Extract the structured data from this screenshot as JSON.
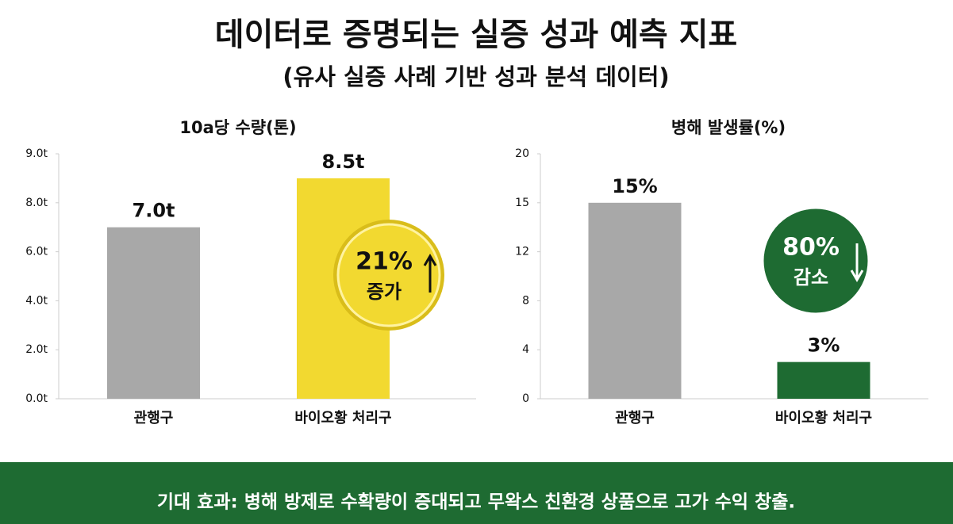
{
  "header": {
    "title": "데이터로 증명되는 실증 성과 예측 지표",
    "subtitle": "(유사 실증 사례 기반 성과 분석 데이터)"
  },
  "chart_data": [
    {
      "type": "bar",
      "title": "10a당 수량(톤)",
      "categories": [
        "관행구",
        "바이오황 처리구"
      ],
      "values": [
        7.0,
        8.5
      ],
      "value_labels": [
        "7.0t",
        "8.5t"
      ],
      "colors": [
        "#a8a8a8",
        "#f2d930"
      ],
      "ylim": [
        0,
        9
      ],
      "yticks": [
        {
          "value": 0,
          "label": "0.0t"
        },
        {
          "value": 2,
          "label": "2.0t"
        },
        {
          "value": 4,
          "label": "4.0t"
        },
        {
          "value": 6,
          "label": "6.0t"
        },
        {
          "value": 8,
          "label": "8.0t"
        },
        {
          "value": 9,
          "label": "9.0t"
        }
      ],
      "annotation": {
        "text": "21%",
        "subtext": "증가"
      }
    },
    {
      "type": "bar",
      "title": "병해 발생률(%)",
      "categories": [
        "관행구",
        "바이오황 처리구"
      ],
      "values": [
        15,
        3
      ],
      "value_labels": [
        "15%",
        "3%"
      ],
      "colors": [
        "#a8a8a8",
        "#1e6b32"
      ],
      "ylim": [
        0,
        20
      ],
      "yticks": [
        0,
        4,
        8,
        12,
        15,
        20
      ],
      "annotation": {
        "text": "80%",
        "subtext": "감소"
      }
    }
  ],
  "footer": {
    "text": "기대 효과: 병해 방제로 수확량이 증대되고 무왁스 친환경 상품으로 고가 수익 창출."
  }
}
